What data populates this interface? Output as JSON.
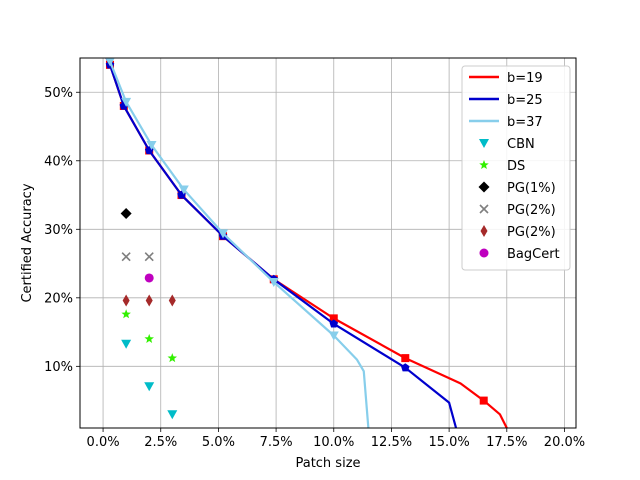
{
  "chart_data": {
    "type": "line",
    "xlabel": "Patch size",
    "ylabel": "Certified Accuracy",
    "xlim": [
      -1.0,
      20.5
    ],
    "ylim": [
      1.0,
      55.0
    ],
    "x_ticks": [
      0,
      2.5,
      5,
      7.5,
      10,
      12.5,
      15,
      17.5,
      20
    ],
    "x_tick_labels": [
      "0.0%",
      "2.5%",
      "5.0%",
      "7.5%",
      "10.0%",
      "12.5%",
      "15.0%",
      "17.5%",
      "20.0%"
    ],
    "y_ticks": [
      10,
      20,
      30,
      40,
      50
    ],
    "y_tick_labels": [
      "10%",
      "20%",
      "30%",
      "40%",
      "50%"
    ],
    "grid": true,
    "legend_position": "top-right",
    "line_series": [
      {
        "name": "b=19",
        "color": "#ff0000",
        "marker": "square",
        "x": [
          0.0,
          0.3,
          0.9,
          2.0,
          3.4,
          5.2,
          7.4,
          10.0,
          13.1,
          15.5,
          16.5,
          17.2,
          17.5
        ],
        "y": [
          56.0,
          54.0,
          48.0,
          41.5,
          35.0,
          29.0,
          22.7,
          17.0,
          11.2,
          7.5,
          5.0,
          3.0,
          1.0
        ],
        "markers_x": [
          0.3,
          0.9,
          2.0,
          3.4,
          5.2,
          7.4,
          10.0,
          13.1,
          16.5
        ],
        "markers_y": [
          54.0,
          48.0,
          41.5,
          35.0,
          29.0,
          22.7,
          17.0,
          11.2,
          5.0
        ]
      },
      {
        "name": "b=25",
        "color": "#0000cd",
        "marker": "pentagon",
        "x": [
          0.0,
          0.3,
          0.9,
          2.0,
          3.4,
          5.2,
          7.4,
          10.0,
          13.1,
          15.0,
          15.3
        ],
        "y": [
          56.0,
          54.0,
          48.0,
          41.5,
          35.0,
          29.0,
          22.7,
          16.2,
          9.8,
          4.7,
          1.0
        ],
        "markers_x": [
          0.3,
          0.9,
          2.0,
          3.4,
          5.2,
          7.4,
          10.0,
          13.1
        ],
        "markers_y": [
          54.0,
          48.0,
          41.5,
          35.0,
          29.0,
          22.7,
          16.2,
          9.8
        ]
      },
      {
        "name": "b=37",
        "color": "#87ceeb",
        "marker": "triangle-down",
        "x": [
          0.0,
          0.3,
          1.0,
          2.1,
          3.5,
          5.2,
          7.4,
          10.0,
          11.0,
          11.3,
          11.5
        ],
        "y": [
          56.0,
          54.5,
          48.6,
          42.3,
          35.8,
          29.4,
          22.3,
          14.5,
          11.0,
          9.3,
          1.0
        ],
        "markers_x": [
          0.3,
          1.0,
          2.1,
          3.5,
          5.2,
          7.4,
          10.0
        ],
        "markers_y": [
          54.5,
          48.6,
          42.3,
          35.8,
          29.4,
          22.3,
          14.5
        ]
      }
    ],
    "scatter_series": [
      {
        "name": "CBN",
        "color": "#00bcc8",
        "marker": "triangle-down",
        "x": [
          1.0,
          2.0,
          3.0
        ],
        "y": [
          13.3,
          7.1,
          3.0
        ]
      },
      {
        "name": "DS",
        "color": "#32f000",
        "marker": "star",
        "x": [
          1.0,
          2.0,
          3.0
        ],
        "y": [
          17.6,
          14.0,
          11.2
        ]
      },
      {
        "name": "PG(1%)",
        "color": "#000000",
        "marker": "diamond",
        "x": [
          1.0
        ],
        "y": [
          32.3
        ]
      },
      {
        "name": "PG(2%)",
        "color": "#7f7f7f",
        "marker": "x",
        "x": [
          1.0,
          2.0
        ],
        "y": [
          26.0,
          26.0
        ]
      },
      {
        "name": "PG(2%)",
        "color": "#a52a2a",
        "marker": "thin-diamond",
        "x": [
          1.0,
          2.0,
          3.0
        ],
        "y": [
          19.6,
          19.6,
          19.6
        ]
      },
      {
        "name": "BagCert",
        "color": "#bf00bf",
        "marker": "circle",
        "x": [
          2.0
        ],
        "y": [
          22.9
        ]
      }
    ]
  }
}
